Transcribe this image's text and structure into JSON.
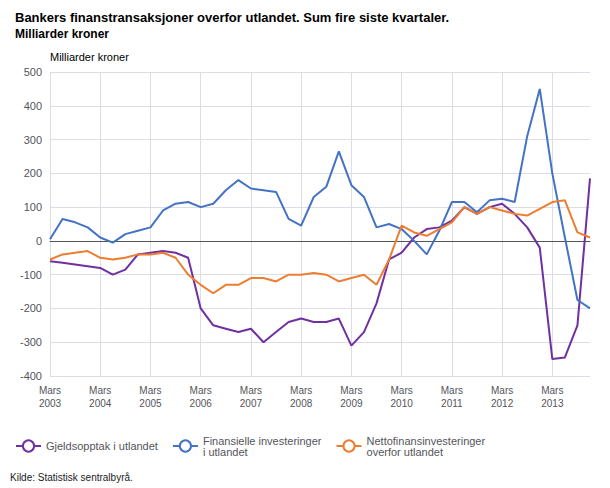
{
  "chart_data": {
    "type": "line",
    "title": "Bankers finanstransaksjoner overfor utlandet. Sum fire siste kvartaler.",
    "subtitle": "Milliarder kroner",
    "ylabel": "Milliarder kroner",
    "annotations": [
      "Kilde: Statistisk sentralbyrå."
    ],
    "categories": [
      "Mars\n2003",
      null,
      null,
      null,
      "Mars\n2004",
      null,
      null,
      null,
      "Mars\n2005",
      null,
      null,
      null,
      "Mars\n2006",
      null,
      null,
      null,
      "Mars\n2007",
      null,
      null,
      null,
      "Mars\n2008",
      null,
      null,
      null,
      "Mars\n2009",
      null,
      null,
      null,
      "Mars\n2010",
      null,
      null,
      null,
      "Mars\n2011",
      null,
      null,
      null,
      "Mars\n2012",
      null,
      null,
      null,
      "Mars\n2013",
      null,
      null,
      null
    ],
    "series": [
      {
        "name": "Gjeldsopptak i utlandet",
        "color": "#7030a0",
        "values": [
          -60,
          -65,
          -70,
          -75,
          -80,
          -100,
          -85,
          -40,
          -35,
          -30,
          -35,
          -50,
          -200,
          -250,
          -260,
          -270,
          -260,
          -300,
          -270,
          -240,
          -230,
          -240,
          -240,
          -230,
          -310,
          -270,
          -185,
          -55,
          -35,
          10,
          35,
          40,
          60,
          100,
          80,
          100,
          110,
          80,
          40,
          -20,
          -350,
          -345,
          -250,
          185
        ]
      },
      {
        "name": "Finansielle investeringer\ni utlandet",
        "color": "#4472c4",
        "values": [
          5,
          65,
          55,
          40,
          10,
          -5,
          20,
          30,
          40,
          90,
          110,
          115,
          100,
          110,
          150,
          180,
          155,
          150,
          145,
          65,
          45,
          130,
          160,
          265,
          165,
          130,
          40,
          50,
          35,
          0,
          -40,
          30,
          115,
          115,
          85,
          120,
          125,
          115,
          310,
          450,
          200,
          10,
          -175,
          -200
        ]
      },
      {
        "name": "Nettofinansinvesteringer\noverfor utlandet",
        "color": "#ed7d31",
        "values": [
          -55,
          -40,
          -35,
          -30,
          -50,
          -55,
          -50,
          -40,
          -40,
          -35,
          -50,
          -100,
          -130,
          -155,
          -130,
          -130,
          -110,
          -110,
          -120,
          -100,
          -100,
          -95,
          -100,
          -120,
          -110,
          -100,
          -130,
          -55,
          45,
          25,
          15,
          35,
          55,
          100,
          80,
          100,
          90,
          80,
          75,
          95,
          115,
          120,
          25,
          10
        ]
      }
    ],
    "ylim": [
      -400,
      500
    ],
    "yticks": [
      -400,
      -300,
      -200,
      -100,
      0,
      100,
      200,
      300,
      400,
      500
    ],
    "grid": true,
    "legend": "lower left"
  }
}
